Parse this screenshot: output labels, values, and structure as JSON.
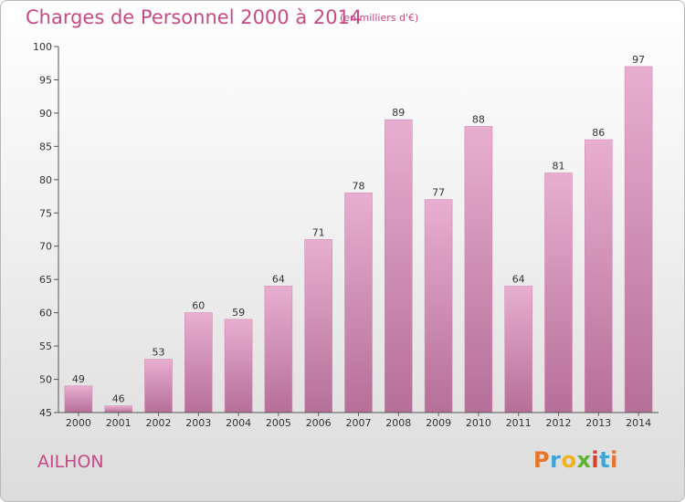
{
  "header": {
    "title": "Charges de Personnel 2000 à 2014",
    "subtitle": "(en milliers d'€)"
  },
  "footer": {
    "commune": "AILHON",
    "logo_text": "Proxiti",
    "logo_colors": [
      "#e8732a",
      "#3aa6dc",
      "#f2b21d",
      "#5fb234",
      "#d9402b",
      "#3aa6dc",
      "#e8732a"
    ]
  },
  "chart_data": {
    "type": "bar",
    "categories": [
      "2000",
      "2001",
      "2002",
      "2003",
      "2004",
      "2005",
      "2006",
      "2007",
      "2008",
      "2009",
      "2010",
      "2011",
      "2012",
      "2013",
      "2014"
    ],
    "values": [
      49,
      46,
      53,
      60,
      59,
      64,
      71,
      78,
      89,
      77,
      88,
      64,
      81,
      86,
      97
    ],
    "ylim": [
      45,
      100
    ],
    "yticks": [
      45,
      50,
      55,
      60,
      65,
      70,
      75,
      80,
      85,
      90,
      95,
      100
    ],
    "grid": false,
    "legend": "none",
    "bar_color_top": "#e8aed0",
    "bar_color_bottom": "#b56f98"
  }
}
